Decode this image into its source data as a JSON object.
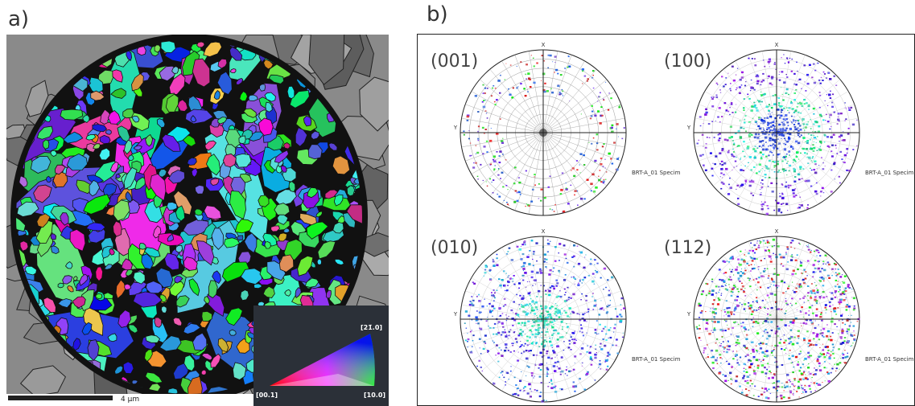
{
  "panels": {
    "a": {
      "label": "a)",
      "scale_bar": "4 μm",
      "legend": {
        "top": "[21̄.0]",
        "left": "[00.1]",
        "right": "[10.0]"
      }
    },
    "b": {
      "label": "b)",
      "pole_figures": [
        {
          "title": "(001)",
          "x_axis": "X",
          "y_axis": "Y",
          "caption": "BRT-A_01 Specim"
        },
        {
          "title": "(100)",
          "x_axis": "X",
          "y_axis": "Y",
          "caption": "BRT-A_01 Specim"
        },
        {
          "title": "(010)",
          "x_axis": "X",
          "y_axis": "Y",
          "caption": "BRT-A_01 Specim"
        },
        {
          "title": "(112)",
          "x_axis": "X",
          "y_axis": "Y",
          "caption": "BRT-A_01 Specim"
        }
      ]
    }
  }
}
